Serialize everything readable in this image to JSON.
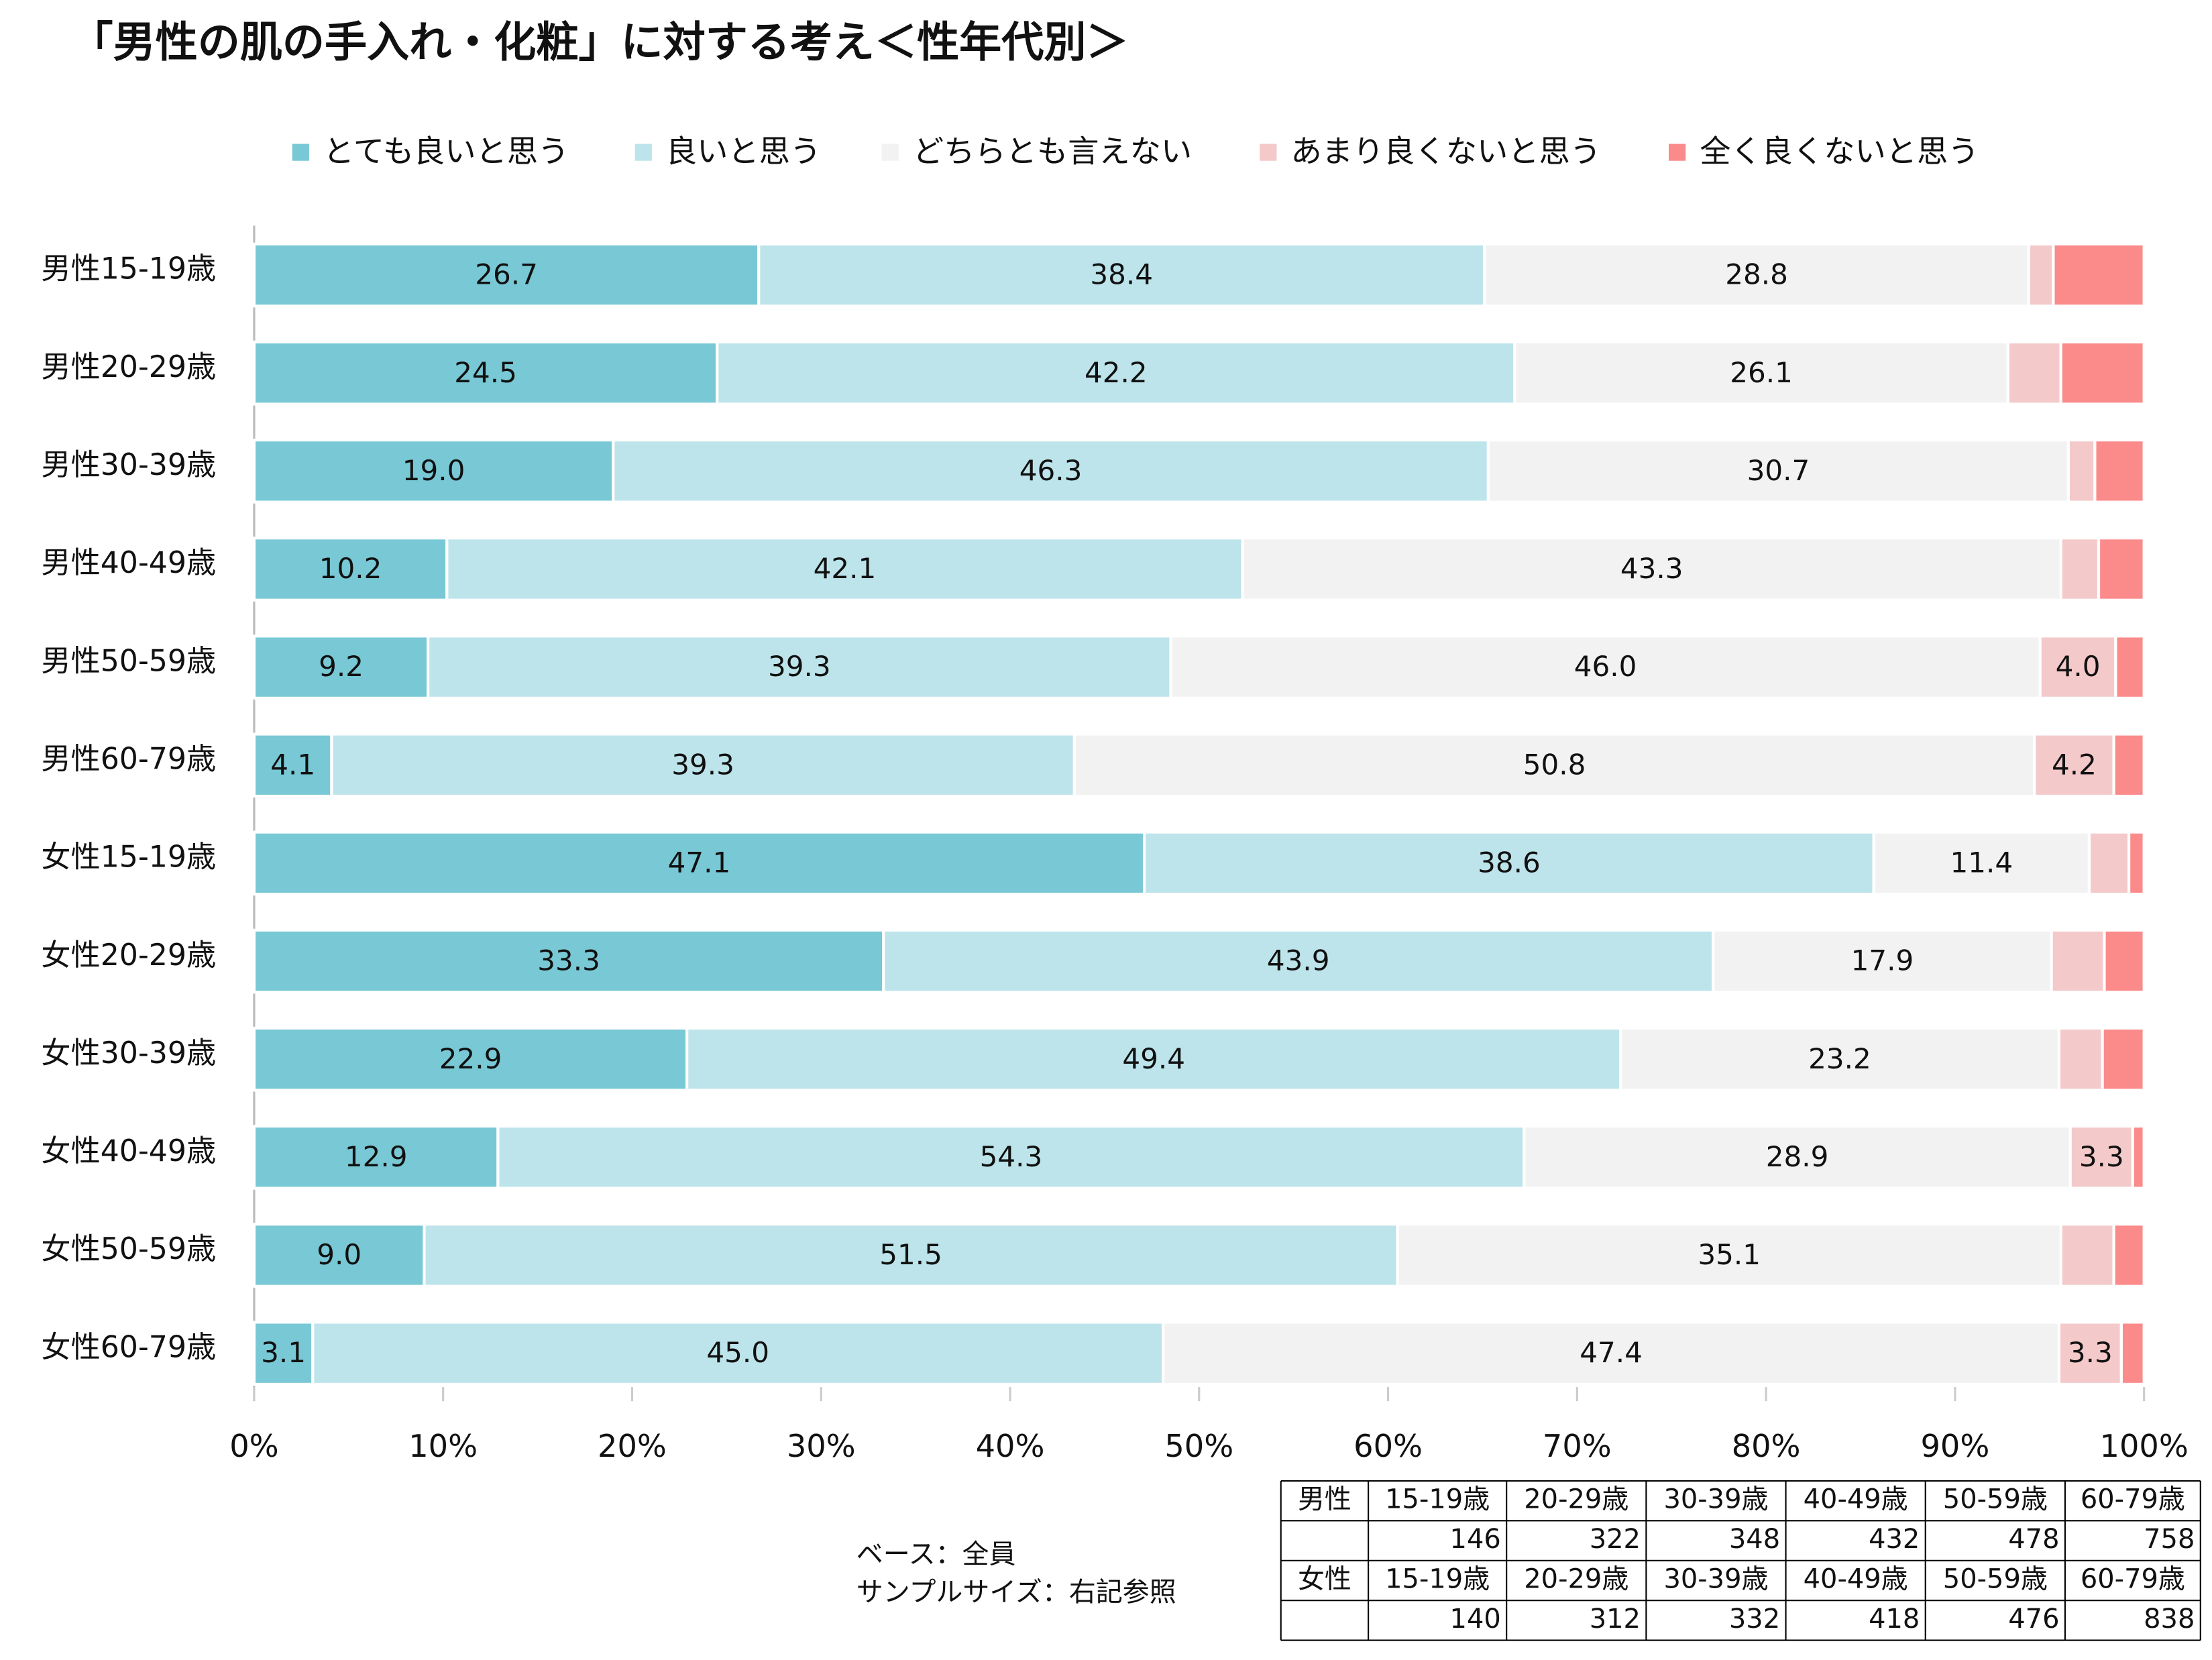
{
  "chart_data": {
    "type": "stacked_bar_horizontal",
    "title": "「男性の肌の手入れ・化粧」に対する考え＜性年代別＞",
    "categories": [
      "男性15-19歳",
      "男性20-29歳",
      "男性30-39歳",
      "男性40-49歳",
      "男性50-59歳",
      "男性60-79歳",
      "女性15-19歳",
      "女性20-29歳",
      "女性30-39歳",
      "女性40-49歳",
      "女性50-59歳",
      "女性60-79歳"
    ],
    "series": [
      {
        "name": "とても良いと思う",
        "color": "#79c8d5",
        "values": [
          26.7,
          24.5,
          19.0,
          10.2,
          9.2,
          4.1,
          47.1,
          33.3,
          22.9,
          12.9,
          9.0,
          3.1
        ],
        "value_labels": [
          "26.7",
          "24.5",
          "19.0",
          "10.2",
          "9.2",
          "4.1",
          "47.1",
          "33.3",
          "22.9",
          "12.9",
          "9.0",
          "3.1"
        ]
      },
      {
        "name": "良いと思う",
        "color": "#bde4eb",
        "values": [
          38.4,
          42.2,
          46.3,
          42.1,
          39.3,
          39.3,
          38.6,
          43.9,
          49.4,
          54.3,
          51.5,
          45.0
        ],
        "value_labels": [
          "38.4",
          "42.2",
          "46.3",
          "42.1",
          "39.3",
          "39.3",
          "38.6",
          "43.9",
          "49.4",
          "54.3",
          "51.5",
          "45.0"
        ]
      },
      {
        "name": "どちらとも言えない",
        "color": "#f2f2f2",
        "values": [
          28.8,
          26.1,
          30.7,
          43.3,
          46.0,
          50.8,
          11.4,
          17.9,
          23.2,
          28.9,
          35.1,
          47.4
        ],
        "value_labels": [
          "28.8",
          "26.1",
          "30.7",
          "43.3",
          "46.0",
          "50.8",
          "11.4",
          "17.9",
          "23.2",
          "28.9",
          "35.1",
          "47.4"
        ]
      },
      {
        "name": "あまり良くないと思う",
        "color": "#f4c9ca",
        "values": [
          1.3,
          2.8,
          1.4,
          2.0,
          4.0,
          4.2,
          2.1,
          2.8,
          2.3,
          3.3,
          2.8,
          3.3
        ],
        "value_labels": [
          null,
          null,
          null,
          null,
          "4.0",
          "4.2",
          null,
          null,
          null,
          "3.3",
          null,
          "3.3"
        ]
      },
      {
        "name": "全く良くないと思う",
        "color": "#fb8a8a",
        "values": [
          4.8,
          4.4,
          2.6,
          2.4,
          1.5,
          1.6,
          0.8,
          2.1,
          2.2,
          0.6,
          1.6,
          1.2
        ],
        "value_labels": [
          null,
          null,
          null,
          null,
          null,
          null,
          null,
          null,
          null,
          null,
          null,
          null
        ]
      }
    ],
    "xlim": [
      0,
      100
    ],
    "xticks": [
      {
        "value": 0,
        "label": "0%"
      },
      {
        "value": 10,
        "label": "10%"
      },
      {
        "value": 20,
        "label": "20%"
      },
      {
        "value": 30,
        "label": "30%"
      },
      {
        "value": 40,
        "label": "40%"
      },
      {
        "value": 50,
        "label": "50%"
      },
      {
        "value": 60,
        "label": "60%"
      },
      {
        "value": 70,
        "label": "70%"
      },
      {
        "value": 80,
        "label": "80%"
      },
      {
        "value": 90,
        "label": "90%"
      },
      {
        "value": 100,
        "label": "100%"
      }
    ],
    "legend": "top"
  },
  "notes": [
    "ベース：全員",
    "サンプルサイズ：右記参照"
  ],
  "sample_table": {
    "groups": [
      {
        "label": "男性",
        "headers": [
          "15-19歳",
          "20-29歳",
          "30-39歳",
          "40-49歳",
          "50-59歳",
          "60-79歳"
        ],
        "values": [
          146,
          322,
          348,
          432,
          478,
          758
        ]
      },
      {
        "label": "女性",
        "headers": [
          "15-19歳",
          "20-29歳",
          "30-39歳",
          "40-49歳",
          "50-59歳",
          "60-79歳"
        ],
        "values": [
          140,
          312,
          332,
          418,
          476,
          838
        ]
      }
    ]
  }
}
